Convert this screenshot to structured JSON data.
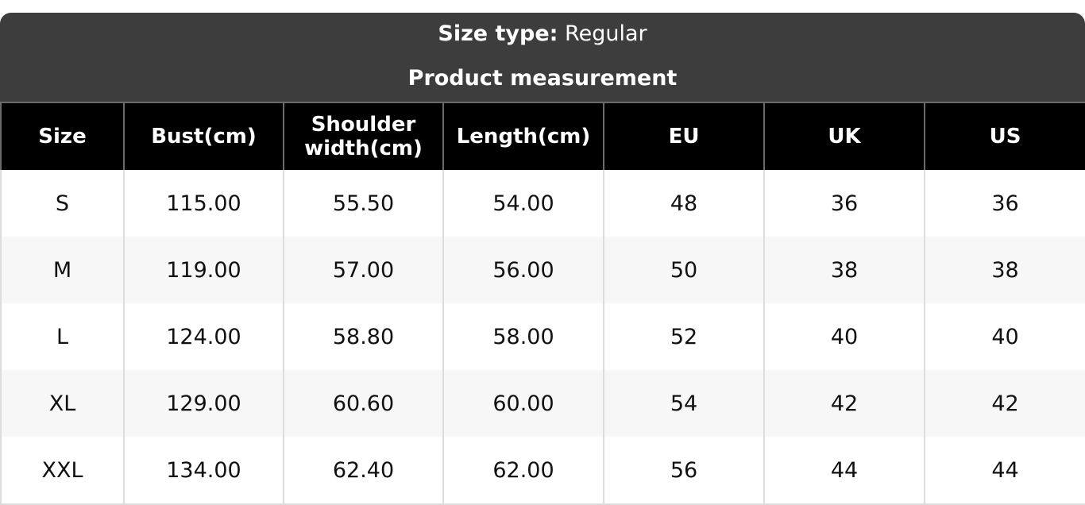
{
  "header": {
    "size_type_label": "Size type:",
    "size_type_value": "Regular",
    "subtitle": "Product measurement"
  },
  "columns": [
    "Size",
    "Bust(cm)",
    "Shoulder width(cm)",
    "Length(cm)",
    "EU",
    "UK",
    "US"
  ],
  "rows": [
    [
      "S",
      "115.00",
      "55.50",
      "54.00",
      "48",
      "36",
      "36"
    ],
    [
      "M",
      "119.00",
      "57.00",
      "56.00",
      "50",
      "38",
      "38"
    ],
    [
      "L",
      "124.00",
      "58.80",
      "58.00",
      "52",
      "40",
      "40"
    ],
    [
      "XL",
      "129.00",
      "60.60",
      "60.00",
      "54",
      "42",
      "42"
    ],
    [
      "XXL",
      "134.00",
      "62.40",
      "62.00",
      "56",
      "44",
      "44"
    ]
  ]
}
